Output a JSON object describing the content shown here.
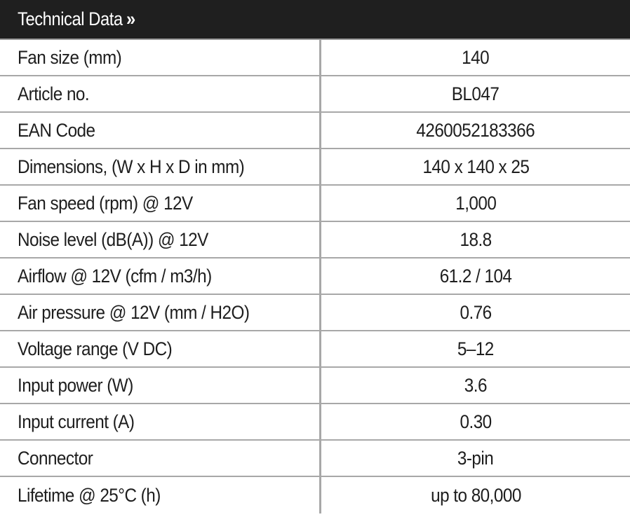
{
  "header": {
    "title": "Technical Data",
    "arrow": "»"
  },
  "rows": [
    {
      "label": "Fan size (mm)",
      "value": "140"
    },
    {
      "label": "Article no.",
      "value": "BL047"
    },
    {
      "label": "EAN Code",
      "value": "4260052183366"
    },
    {
      "label": "Dimensions, (W x H x D in mm)",
      "value": "140 x 140 x 25"
    },
    {
      "label": "Fan speed (rpm) @ 12V",
      "value": "1,000"
    },
    {
      "label": "Noise level (dB(A)) @ 12V",
      "value": "18.8"
    },
    {
      "label": "Airflow @ 12V (cfm / m3/h)",
      "value": "61.2 / 104"
    },
    {
      "label": "Air pressure @ 12V (mm / H2O)",
      "value": "0.76"
    },
    {
      "label": "Voltage range (V DC)",
      "value": "5–12"
    },
    {
      "label": "Input power (W)",
      "value": "3.6"
    },
    {
      "label": "Input current (A)",
      "value": "0.30"
    },
    {
      "label": "Connector",
      "value": "3-pin"
    },
    {
      "label": "Lifetime @ 25°C (h)",
      "value": "up to 80,000"
    }
  ]
}
